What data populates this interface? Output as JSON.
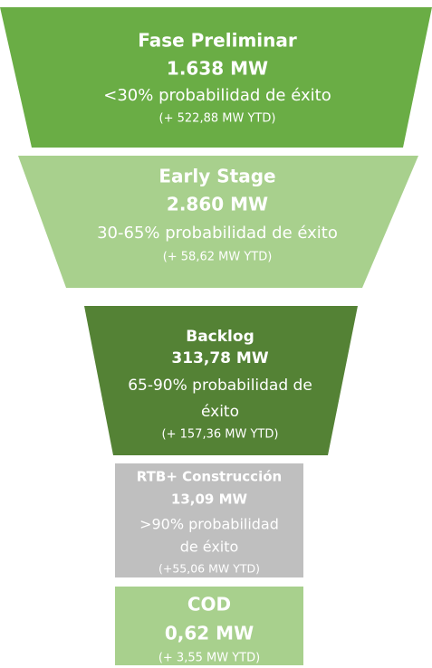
{
  "stages": [
    {
      "title": "Fase Preliminar",
      "value": "1.638 MW",
      "probability": [
        "<30% probabilidad de éxito"
      ],
      "ytd": "(+ 522,88 MW YTD)"
    },
    {
      "title": "Early Stage",
      "value": "2.860 MW",
      "probability": [
        "30-65% probabilidad de éxito"
      ],
      "ytd": "(+ 58,62 MW YTD)"
    },
    {
      "title": "Backlog",
      "value": "313,78 MW",
      "probability": [
        "65-90% probabilidad de",
        "éxito"
      ],
      "ytd": "(+ 157,36 MW YTD)"
    },
    {
      "title": "RTB+ Construcción",
      "value": "13,09 MW",
      "probability": [
        ">90% probabilidad",
        "de éxito"
      ],
      "ytd": "(+55,06 MW YTD)"
    },
    {
      "title": "COD",
      "value": "0,62 MW",
      "probability": [],
      "ytd": "(+ 3,55 MW YTD)"
    }
  ]
}
